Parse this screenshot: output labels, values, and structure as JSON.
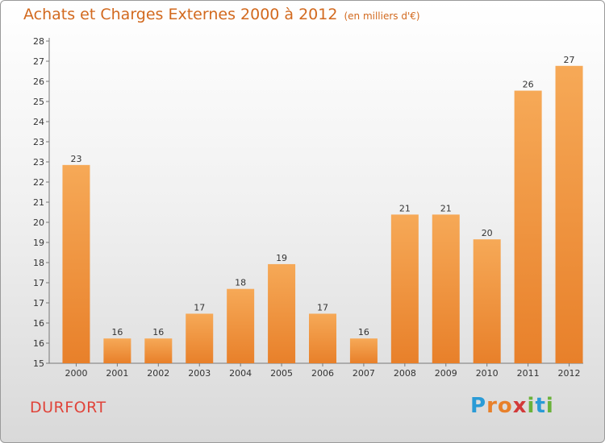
{
  "chart_data": {
    "type": "bar",
    "title": "Achats et Charges Externes 2000 à 2012",
    "subtitle": "(en milliers d'€)",
    "categories": [
      "2000",
      "2001",
      "2002",
      "2003",
      "2004",
      "2005",
      "2006",
      "2007",
      "2008",
      "2009",
      "2010",
      "2011",
      "2012"
    ],
    "values": [
      23,
      16,
      16,
      17,
      18,
      19,
      17,
      16,
      21,
      21,
      20,
      26,
      27
    ],
    "bar_values": [
      23.0,
      16.0,
      16.0,
      17.0,
      18.0,
      19.0,
      17.0,
      16.0,
      21.0,
      21.0,
      20.0,
      26.0,
      27.0
    ],
    "yticks": [
      "15",
      "16",
      "16",
      "17",
      "17",
      "18",
      "19",
      "20",
      "21",
      "22",
      "23",
      "23",
      "24",
      "25",
      "26",
      "27",
      "28"
    ],
    "ylim": [
      15,
      28
    ],
    "grid": false,
    "bar_color": "#e8802a",
    "bar_color_top": "#f6a957"
  },
  "footer": {
    "city": "DURFORT",
    "logo_letters": [
      {
        "ch": "P",
        "color": "#2a9bd6"
      },
      {
        "ch": "r",
        "color": "#e8802a"
      },
      {
        "ch": "o",
        "color": "#e8802a"
      },
      {
        "ch": "x",
        "color": "#d23a3a"
      },
      {
        "ch": "i",
        "color": "#6ab23a"
      },
      {
        "ch": "t",
        "color": "#2a9bd6"
      },
      {
        "ch": "i",
        "color": "#6ab23a"
      }
    ]
  }
}
